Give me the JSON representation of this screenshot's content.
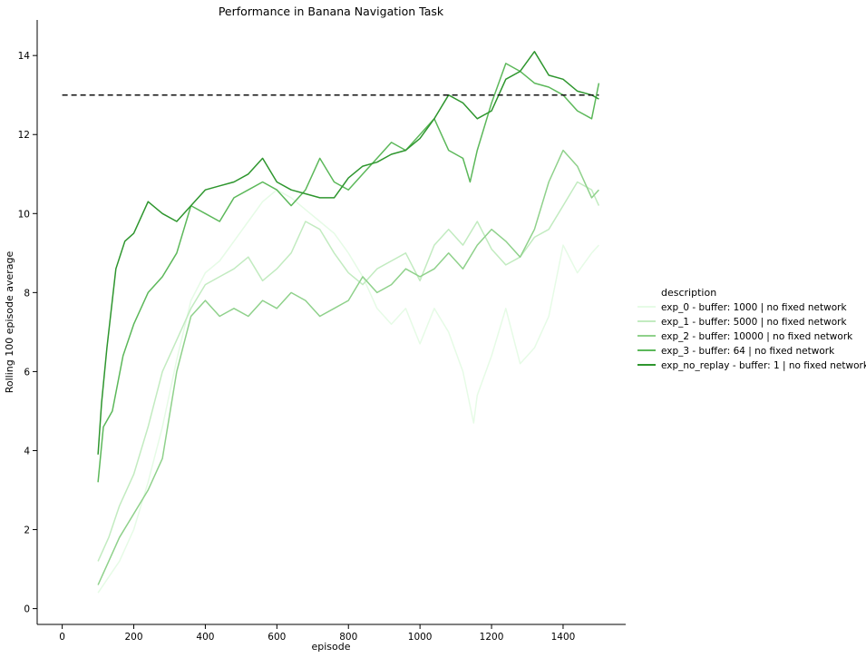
{
  "chart_data": {
    "type": "line",
    "title": "Performance in Banana Navigation Task",
    "xlabel": "episode",
    "ylabel": "Rolling 100 episode average",
    "xlim": [
      -70,
      1575
    ],
    "ylim": [
      -0.4,
      14.9
    ],
    "xticks": [
      0,
      200,
      400,
      600,
      800,
      1000,
      1200,
      1400
    ],
    "yticks": [
      0,
      2,
      4,
      6,
      8,
      10,
      12,
      14
    ],
    "grid": false,
    "legend": {
      "title": "description",
      "placement": "right"
    },
    "reference_line": {
      "y": 13,
      "x": [
        0,
        1500
      ],
      "style": "dashed",
      "color": "#111111"
    },
    "series": [
      {
        "name": "exp_0 - buffer: 1000 | no fixed network",
        "color": "#e6fbe6",
        "x": [
          100,
          130,
          160,
          200,
          240,
          280,
          320,
          360,
          400,
          440,
          480,
          520,
          560,
          600,
          640,
          680,
          720,
          760,
          800,
          840,
          880,
          920,
          960,
          1000,
          1040,
          1080,
          1120,
          1150,
          1160,
          1200,
          1240,
          1280,
          1320,
          1360,
          1400,
          1440,
          1480,
          1500
        ],
        "values": [
          0.4,
          0.8,
          1.2,
          2.0,
          3.2,
          4.6,
          6.3,
          7.8,
          8.5,
          8.8,
          9.3,
          9.8,
          10.3,
          10.6,
          10.4,
          10.1,
          9.8,
          9.5,
          9.0,
          8.4,
          7.6,
          7.2,
          7.6,
          6.7,
          7.6,
          7.0,
          6.0,
          4.7,
          5.4,
          6.4,
          7.6,
          6.2,
          6.6,
          7.4,
          9.2,
          8.5,
          9.0,
          9.2
        ]
      },
      {
        "name": "exp_1 - buffer: 5000 | no fixed network",
        "color": "#c2ebc0",
        "x": [
          100,
          130,
          160,
          200,
          240,
          280,
          320,
          360,
          400,
          440,
          480,
          520,
          560,
          600,
          640,
          680,
          720,
          760,
          800,
          840,
          880,
          920,
          960,
          1000,
          1040,
          1080,
          1120,
          1160,
          1200,
          1240,
          1280,
          1320,
          1360,
          1400,
          1440,
          1480,
          1500
        ],
        "values": [
          1.2,
          1.8,
          2.6,
          3.4,
          4.6,
          6.0,
          6.8,
          7.6,
          8.2,
          8.4,
          8.6,
          8.9,
          8.3,
          8.6,
          9.0,
          9.8,
          9.6,
          9.0,
          8.5,
          8.2,
          8.6,
          8.8,
          9.0,
          8.3,
          9.2,
          9.6,
          9.2,
          9.8,
          9.1,
          8.7,
          8.9,
          9.4,
          9.6,
          10.2,
          10.8,
          10.6,
          10.2
        ]
      },
      {
        "name": "exp_2 - buffer: 10000 | no fixed network",
        "color": "#8fd18b",
        "x": [
          100,
          130,
          160,
          200,
          240,
          280,
          320,
          360,
          400,
          440,
          480,
          520,
          560,
          600,
          640,
          680,
          720,
          760,
          800,
          840,
          880,
          920,
          960,
          1000,
          1040,
          1080,
          1120,
          1160,
          1200,
          1240,
          1280,
          1320,
          1360,
          1400,
          1440,
          1480,
          1500
        ],
        "values": [
          0.6,
          1.2,
          1.8,
          2.4,
          3.0,
          3.8,
          6.0,
          7.4,
          7.8,
          7.4,
          7.6,
          7.4,
          7.8,
          7.6,
          8.0,
          7.8,
          7.4,
          7.6,
          7.8,
          8.4,
          8.0,
          8.2,
          8.6,
          8.4,
          8.6,
          9.0,
          8.6,
          9.2,
          9.6,
          9.3,
          8.9,
          9.6,
          10.8,
          11.6,
          11.2,
          10.4,
          10.6
        ]
      },
      {
        "name": "exp_3 - buffer: 64 | no fixed network",
        "color": "#5cb85a",
        "x": [
          100,
          115,
          140,
          170,
          200,
          240,
          280,
          320,
          360,
          400,
          440,
          480,
          520,
          560,
          600,
          640,
          680,
          720,
          760,
          800,
          840,
          880,
          920,
          960,
          1000,
          1040,
          1080,
          1120,
          1140,
          1160,
          1200,
          1240,
          1280,
          1320,
          1360,
          1400,
          1440,
          1480,
          1500
        ],
        "values": [
          3.2,
          4.6,
          5.0,
          6.4,
          7.2,
          8.0,
          8.4,
          9.0,
          10.2,
          10.0,
          9.8,
          10.4,
          10.6,
          10.8,
          10.6,
          10.2,
          10.6,
          11.4,
          10.8,
          10.6,
          11.0,
          11.4,
          11.8,
          11.6,
          12.0,
          12.4,
          11.6,
          11.4,
          10.8,
          11.6,
          12.8,
          13.8,
          13.6,
          13.3,
          13.2,
          13.0,
          12.6,
          12.4,
          13.3
        ]
      },
      {
        "name": "exp_no_replay - buffer: 1 | no fixed network",
        "color": "#2e962e",
        "x": [
          100,
          110,
          125,
          150,
          175,
          200,
          240,
          280,
          320,
          360,
          400,
          440,
          480,
          520,
          560,
          600,
          640,
          680,
          720,
          760,
          800,
          840,
          880,
          920,
          960,
          1000,
          1040,
          1080,
          1120,
          1160,
          1200,
          1240,
          1280,
          1320,
          1360,
          1400,
          1440,
          1480,
          1500
        ],
        "values": [
          3.9,
          5.2,
          6.6,
          8.6,
          9.3,
          9.5,
          10.3,
          10.0,
          9.8,
          10.2,
          10.6,
          10.7,
          10.8,
          11.0,
          11.4,
          10.8,
          10.6,
          10.5,
          10.4,
          10.4,
          10.9,
          11.2,
          11.3,
          11.5,
          11.6,
          11.9,
          12.4,
          13.0,
          12.8,
          12.4,
          12.6,
          13.4,
          13.6,
          14.1,
          13.5,
          13.4,
          13.1,
          13.0,
          12.9
        ]
      }
    ]
  }
}
